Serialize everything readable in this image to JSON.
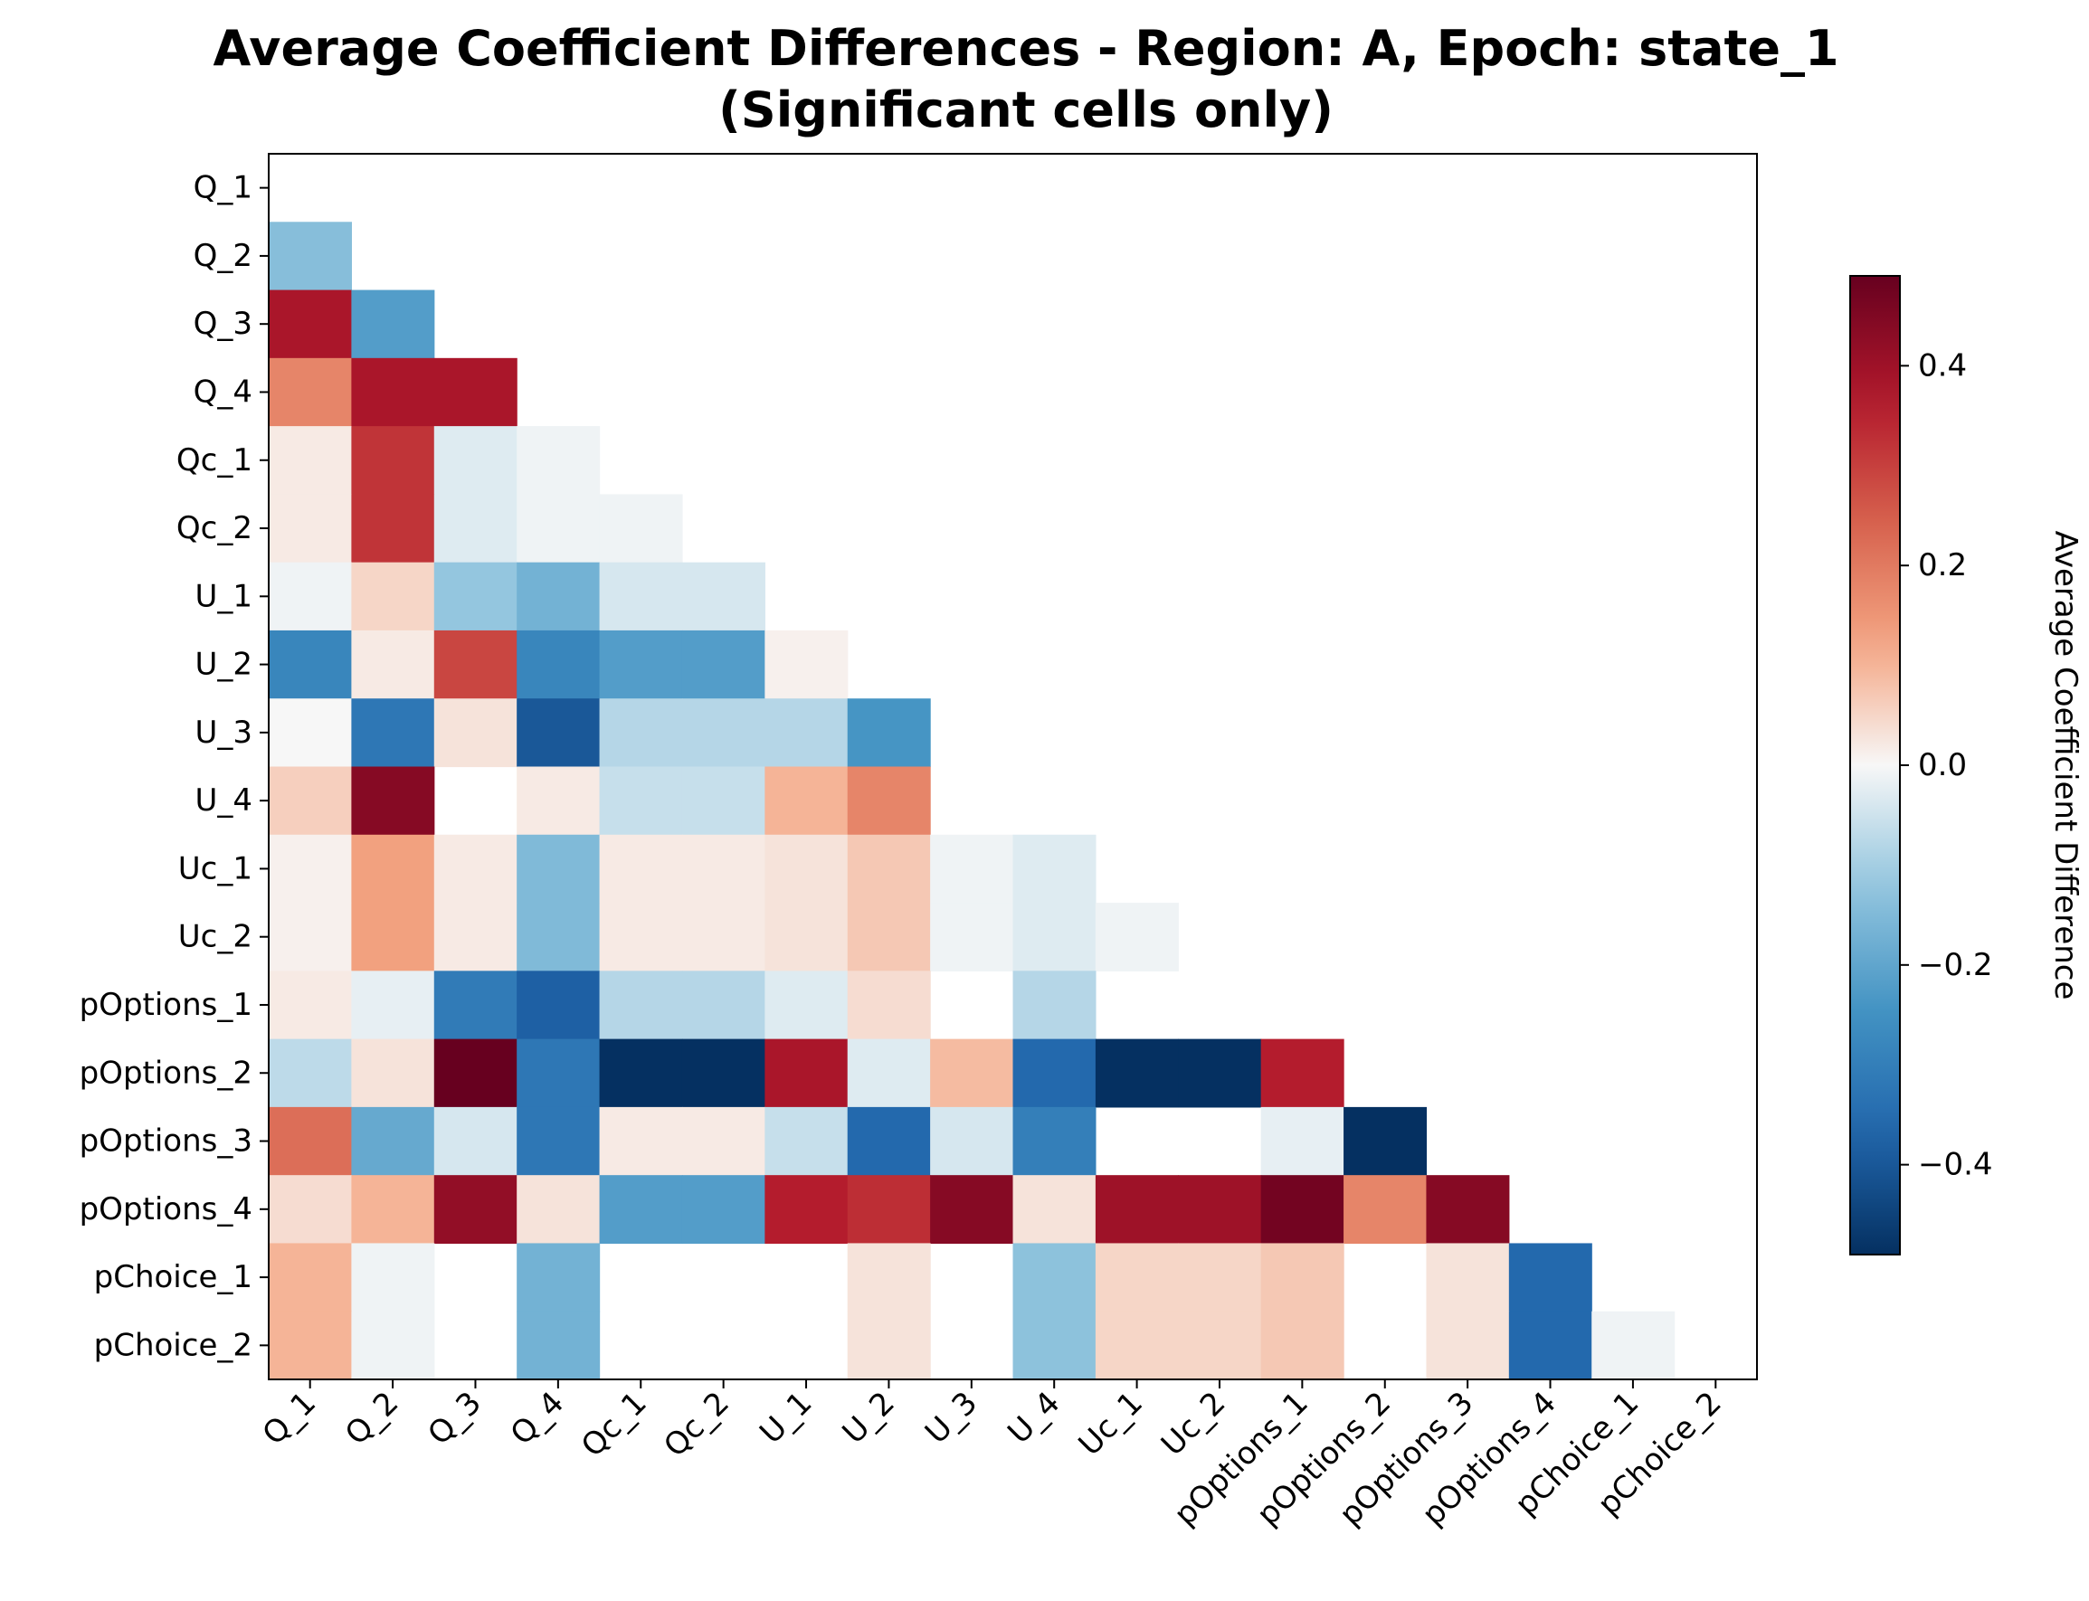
{
  "chart_data": {
    "type": "heatmap",
    "title": "Average Coefficient Differences - Region: A, Epoch: state_1",
    "subtitle": "(Significant cells only)",
    "labels": [
      "Q_1",
      "Q_2",
      "Q_3",
      "Q_4",
      "Qc_1",
      "Qc_2",
      "U_1",
      "U_2",
      "U_3",
      "U_4",
      "Uc_1",
      "Uc_2",
      "pOptions_1",
      "pOptions_2",
      "pOptions_3",
      "pOptions_4",
      "pChoice_1",
      "pChoice_2"
    ],
    "matrix": [
      [
        null,
        null,
        null,
        null,
        null,
        null,
        null,
        null,
        null,
        null,
        null,
        null,
        null,
        null,
        null,
        null,
        null,
        null
      ],
      [
        -0.14,
        null,
        null,
        null,
        null,
        null,
        null,
        null,
        null,
        null,
        null,
        null,
        null,
        null,
        null,
        null,
        null,
        null
      ],
      [
        0.38,
        -0.22,
        null,
        null,
        null,
        null,
        null,
        null,
        null,
        null,
        null,
        null,
        null,
        null,
        null,
        null,
        null,
        null
      ],
      [
        0.18,
        0.38,
        0.38,
        null,
        null,
        null,
        null,
        null,
        null,
        null,
        null,
        null,
        null,
        null,
        null,
        null,
        null,
        null
      ],
      [
        0.02,
        0.32,
        -0.03,
        -0.01,
        null,
        null,
        null,
        null,
        null,
        null,
        null,
        null,
        null,
        null,
        null,
        null,
        null,
        null
      ],
      [
        0.02,
        0.32,
        -0.03,
        -0.01,
        -0.01,
        null,
        null,
        null,
        null,
        null,
        null,
        null,
        null,
        null,
        null,
        null,
        null,
        null
      ],
      [
        -0.01,
        0.05,
        -0.12,
        -0.17,
        -0.04,
        -0.04,
        null,
        null,
        null,
        null,
        null,
        null,
        null,
        null,
        null,
        null,
        null,
        null
      ],
      [
        -0.28,
        0.02,
        0.29,
        -0.28,
        -0.22,
        -0.22,
        0.01,
        null,
        null,
        null,
        null,
        null,
        null,
        null,
        null,
        null,
        null,
        null
      ],
      [
        0.0,
        -0.32,
        0.03,
        -0.4,
        -0.08,
        -0.08,
        -0.08,
        -0.24,
        null,
        null,
        null,
        null,
        null,
        null,
        null,
        null,
        null,
        null
      ],
      [
        0.06,
        0.44,
        null,
        0.02,
        -0.06,
        -0.06,
        0.1,
        0.18,
        null,
        null,
        null,
        null,
        null,
        null,
        null,
        null,
        null,
        null
      ],
      [
        0.01,
        0.13,
        0.02,
        -0.15,
        0.02,
        0.02,
        0.03,
        0.07,
        -0.01,
        -0.03,
        null,
        null,
        null,
        null,
        null,
        null,
        null,
        null
      ],
      [
        0.01,
        0.13,
        0.02,
        -0.15,
        0.02,
        0.02,
        0.03,
        0.07,
        -0.01,
        -0.03,
        -0.01,
        null,
        null,
        null,
        null,
        null,
        null,
        null
      ],
      [
        0.02,
        -0.02,
        -0.31,
        -0.38,
        -0.08,
        -0.08,
        -0.03,
        0.04,
        null,
        -0.08,
        null,
        null,
        null,
        null,
        null,
        null,
        null,
        null
      ],
      [
        -0.07,
        0.03,
        0.49,
        -0.32,
        -0.49,
        -0.49,
        0.38,
        -0.03,
        0.09,
        -0.36,
        -0.49,
        -0.49,
        0.36,
        null,
        null,
        null,
        null,
        null
      ],
      [
        0.22,
        -0.19,
        -0.04,
        -0.32,
        0.02,
        0.02,
        -0.06,
        -0.36,
        -0.04,
        -0.3,
        null,
        null,
        -0.02,
        -0.49,
        null,
        null,
        null,
        null
      ],
      [
        0.04,
        0.1,
        0.42,
        0.03,
        -0.22,
        -0.22,
        0.36,
        0.33,
        0.44,
        0.03,
        0.4,
        0.4,
        0.47,
        0.18,
        0.44,
        null,
        null,
        null
      ],
      [
        0.1,
        -0.01,
        null,
        -0.17,
        null,
        null,
        null,
        0.03,
        null,
        -0.13,
        0.05,
        0.05,
        0.07,
        null,
        0.03,
        -0.36,
        null,
        null
      ],
      [
        0.1,
        -0.01,
        null,
        -0.17,
        null,
        null,
        null,
        0.03,
        null,
        -0.13,
        0.05,
        0.05,
        0.07,
        null,
        0.03,
        -0.36,
        -0.01,
        null
      ]
    ],
    "vmin": -0.49,
    "vmax": 0.49,
    "colormap": "RdBu_r",
    "colorbar": {
      "label": "Average Coefficient Difference",
      "ticks": [
        0.4,
        0.2,
        0.0,
        -0.2,
        -0.4
      ],
      "tick_labels": [
        "0.4",
        "0.2",
        "0.0",
        "−0.2",
        "−0.4"
      ]
    }
  }
}
